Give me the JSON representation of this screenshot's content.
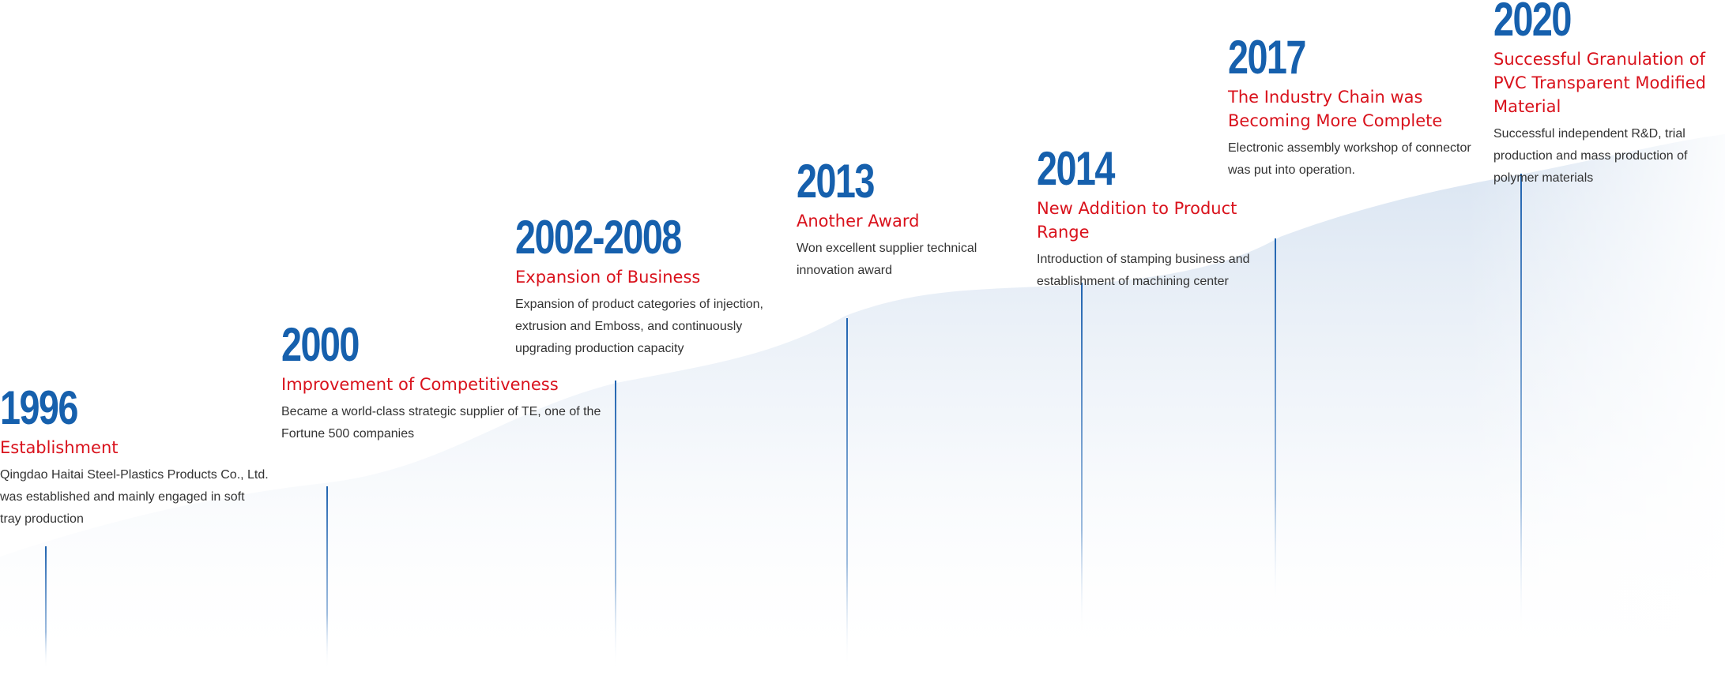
{
  "colors": {
    "year": "#1660ad",
    "title": "#d9121c",
    "description": "#333333",
    "stem": "#1f63b0",
    "band": "#c9d9ec"
  },
  "milestones": [
    {
      "year": "1996",
      "title": "Establishment",
      "description": "Qingdao Haitai Steel-Plastics Products Co., Ltd. was established and mainly engaged in soft tray production"
    },
    {
      "year": "2000",
      "title": "Improvement of Competitiveness",
      "description": "Became a world-class strategic supplier of TE, one of the Fortune 500 companies"
    },
    {
      "year": "2002-2008",
      "title": "Expansion of Business",
      "description": "Expansion of product categories of injection, extrusion and Emboss, and continuously upgrading production capacity"
    },
    {
      "year": "2013",
      "title": "Another Award",
      "description": "Won excellent supplier technical innovation award"
    },
    {
      "year": "2014",
      "title": "New Addition to Product Range",
      "description": "Introduction of stamping business and establishment of machining center"
    },
    {
      "year": "2017",
      "title": "The Industry Chain was Becoming More Complete",
      "description": "Electronic assembly workshop of connector was put into operation."
    },
    {
      "year": "2020",
      "title": "Successful Granulation of PVC Transparent Modified Material",
      "description": "Successful independent R&D, trial production and mass production of polymer materials"
    }
  ]
}
